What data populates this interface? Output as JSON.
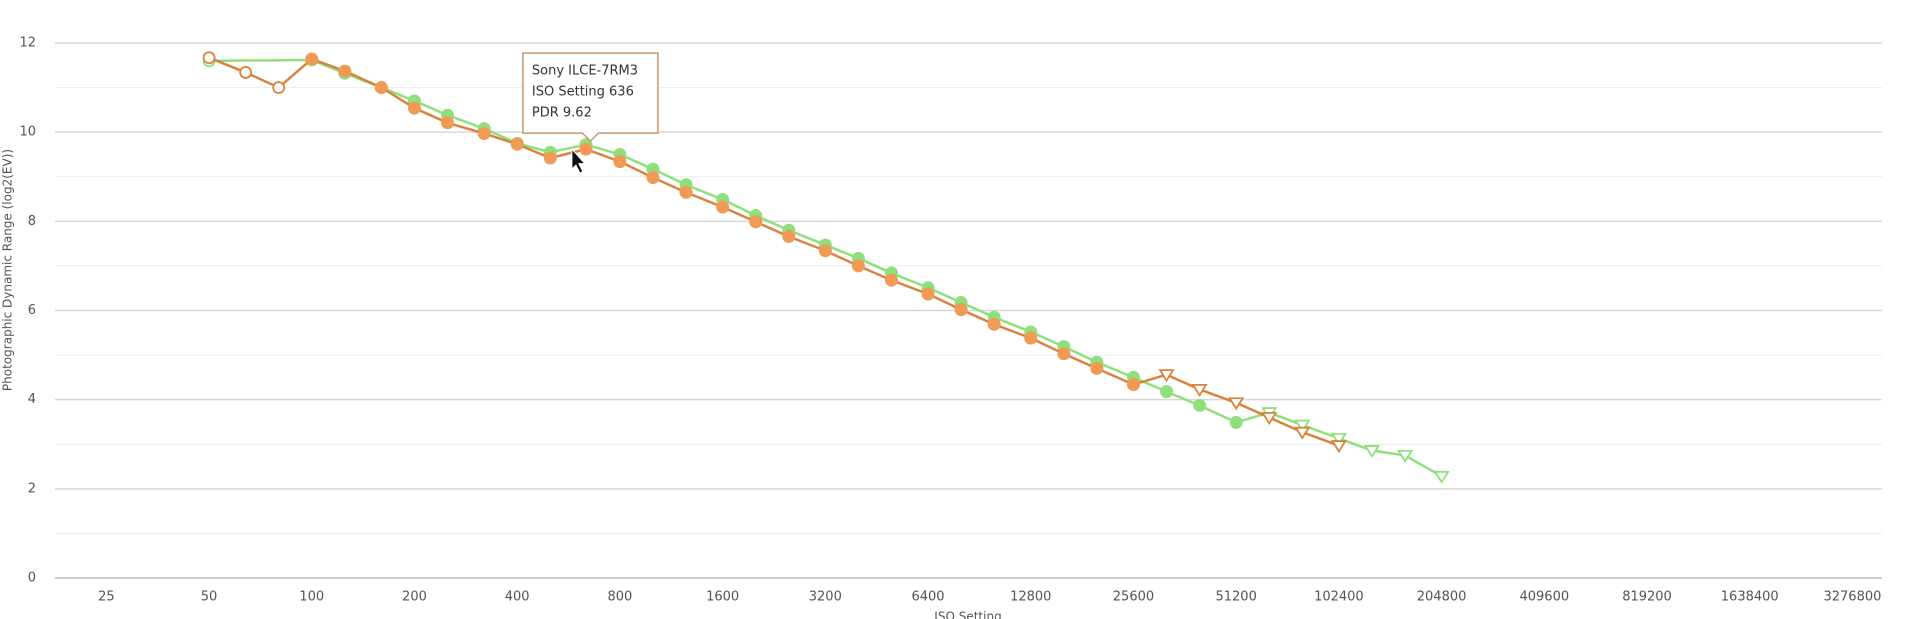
{
  "chart_data": {
    "type": "line",
    "x_label": "ISO Setting",
    "y_label": "Photographic Dynamic Range (log2(EV))",
    "xscale": "log",
    "xlim": [
      17.68,
      4000000
    ],
    "xticks": [
      25,
      50,
      100,
      200,
      400,
      800,
      1600,
      3200,
      6400,
      12800,
      25600,
      51200,
      102400,
      204800,
      409600,
      819200,
      1638400,
      3276800
    ],
    "ylim": [
      0,
      12
    ],
    "yticks": [
      0,
      2,
      4,
      6,
      8,
      10,
      12
    ],
    "grid": true,
    "series": [
      {
        "color": "#8fe07c",
        "x": [
          50,
          100,
          125,
          160,
          200,
          250,
          320,
          400,
          500,
          636,
          800,
          1000,
          1250,
          1600,
          2000,
          2500,
          3200,
          4000,
          5000,
          6400,
          8000,
          10000,
          12800,
          16000,
          20000,
          25600,
          32000,
          40000,
          51200,
          64000,
          80000,
          102400,
          128000,
          160000,
          204800
        ],
        "values": [
          11.6,
          11.62,
          11.32,
          11.0,
          10.7,
          10.38,
          10.08,
          9.75,
          9.55,
          9.72,
          9.5,
          9.17,
          8.82,
          8.49,
          8.13,
          7.8,
          7.47,
          7.17,
          6.84,
          6.51,
          6.18,
          5.85,
          5.52,
          5.19,
          4.84,
          4.5,
          4.18,
          3.87,
          3.49,
          3.71,
          3.43,
          3.13,
          2.86,
          2.75,
          2.28
        ],
        "markers": [
          "open-circle",
          "circle",
          "circle",
          "circle",
          "circle",
          "circle",
          "circle",
          "circle",
          "circle",
          "circle",
          "circle",
          "circle",
          "circle",
          "circle",
          "circle",
          "circle",
          "circle",
          "circle",
          "circle",
          "circle",
          "circle",
          "circle",
          "circle",
          "circle",
          "circle",
          "circle",
          "circle",
          "circle",
          "circle",
          "triangle",
          "triangle",
          "triangle",
          "triangle",
          "triangle",
          "triangle"
        ]
      },
      {
        "name": "Sony ILCE-7RM3",
        "color": "#f19a55",
        "x": [
          50,
          64,
          80,
          100,
          125,
          160,
          200,
          250,
          320,
          400,
          500,
          636,
          800,
          1000,
          1250,
          1600,
          2000,
          2500,
          3200,
          4000,
          5000,
          6400,
          8000,
          10000,
          12800,
          16000,
          20000,
          25600,
          32000,
          40000,
          51200,
          64000,
          80000,
          102400
        ],
        "values": [
          11.67,
          11.34,
          11.0,
          11.64,
          11.37,
          11.0,
          10.54,
          10.21,
          9.97,
          9.73,
          9.42,
          9.62,
          9.34,
          8.98,
          8.65,
          8.32,
          7.99,
          7.66,
          7.34,
          7.0,
          6.68,
          6.37,
          6.02,
          5.69,
          5.38,
          5.03,
          4.7,
          4.34,
          4.56,
          4.23,
          3.93,
          3.6,
          3.27,
          2.97
        ],
        "markers": [
          "open-circle",
          "open-circle",
          "open-circle",
          "circle",
          "circle",
          "circle",
          "circle",
          "circle",
          "circle",
          "circle",
          "circle",
          "circle",
          "circle",
          "circle",
          "circle",
          "circle",
          "circle",
          "circle",
          "circle",
          "circle",
          "circle",
          "circle",
          "circle",
          "circle",
          "circle",
          "circle",
          "circle",
          "circle",
          "triangle",
          "triangle",
          "triangle",
          "triangle",
          "triangle",
          "triangle"
        ]
      }
    ],
    "tooltip": {
      "series": 1,
      "point": 11,
      "lines": [
        "Sony ILCE-7RM3",
        "ISO Setting 636",
        "PDR 9.62"
      ]
    }
  }
}
